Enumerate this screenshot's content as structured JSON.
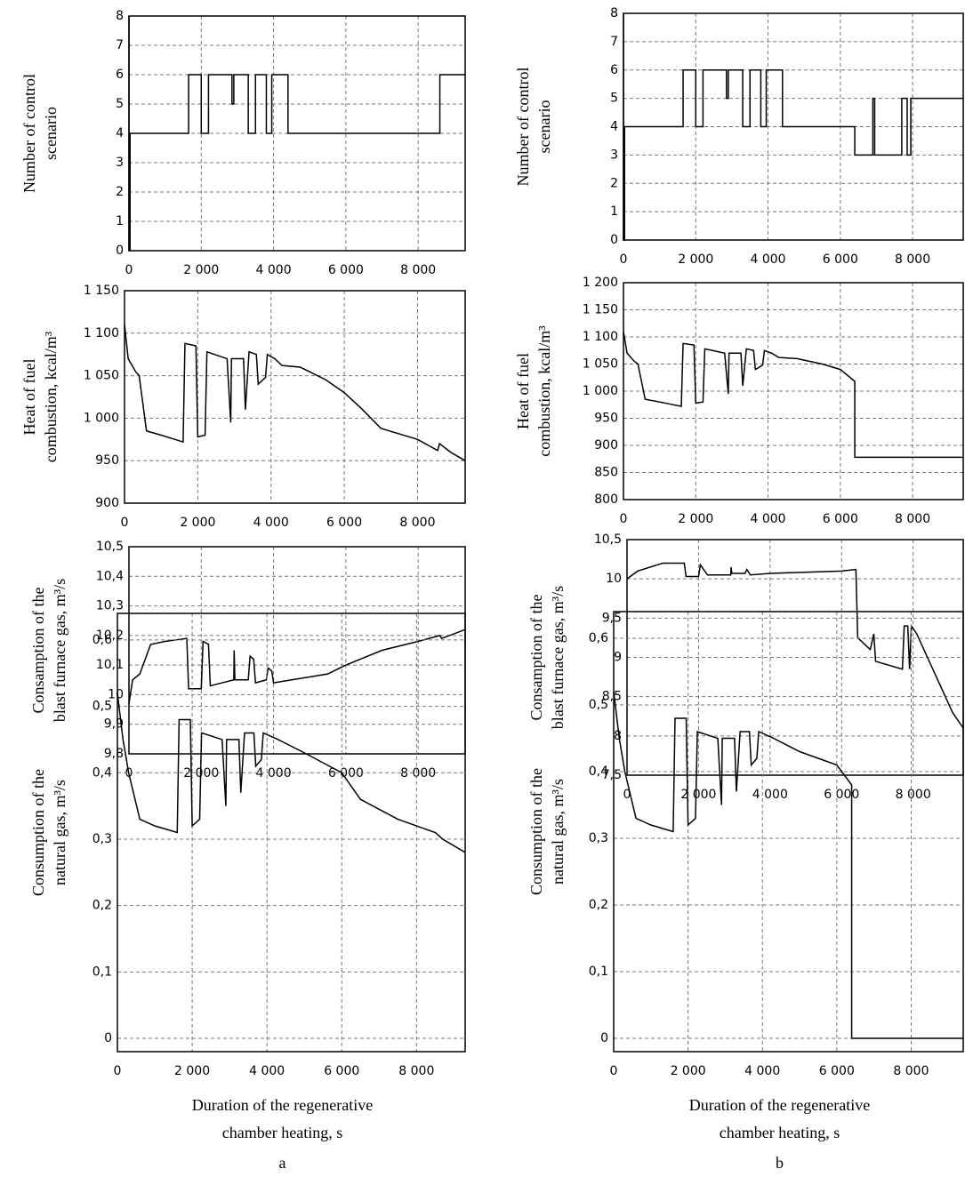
{
  "chart_data": [
    {
      "type": "line",
      "ylabel": [
        "Number of control",
        "scenario"
      ],
      "x": [
        0,
        0,
        30,
        30,
        1650,
        1650,
        2000,
        2000,
        2200,
        2200,
        2850,
        2850,
        2900,
        2900,
        3300,
        3300,
        3500,
        3500,
        3800,
        3800,
        3950,
        3950,
        4400,
        4400,
        8600,
        8600,
        9300
      ],
      "values": [
        8,
        0,
        0,
        4,
        4,
        6,
        6,
        4,
        4,
        6,
        6,
        5,
        5,
        6,
        6,
        4,
        4,
        6,
        6,
        4,
        4,
        6,
        6,
        4,
        4,
        6,
        6
      ],
      "xlim": [
        0,
        9300
      ],
      "ylim": [
        0,
        8
      ],
      "yticks": [
        0,
        1,
        2,
        3,
        4,
        5,
        6,
        7,
        8
      ],
      "xticks": [
        0,
        {
          "value": 2000,
          "label": "2 000"
        },
        {
          "value": 4000,
          "label": "4 000"
        },
        {
          "value": 6000,
          "label": "6 000"
        },
        {
          "value": 8000,
          "label": "8 000"
        }
      ],
      "grid": true,
      "color": "#000000"
    },
    {
      "type": "line",
      "ylabel": [
        "Heat of fuel",
        "combustion, kcal/m³"
      ],
      "x": [
        0,
        100,
        300,
        400,
        600,
        1000,
        1600,
        1650,
        1950,
        2000,
        2200,
        2250,
        2800,
        2900,
        2920,
        3250,
        3300,
        3400,
        3600,
        3650,
        3850,
        3900,
        4100,
        4300,
        4800,
        5500,
        6000,
        6500,
        7000,
        8000,
        8550,
        8600,
        8900,
        9300
      ],
      "values": [
        1110,
        1070,
        1055,
        1050,
        985,
        980,
        972,
        1088,
        1085,
        978,
        980,
        1078,
        1070,
        995,
        1070,
        1070,
        1010,
        1078,
        1075,
        1040,
        1048,
        1075,
        1070,
        1062,
        1060,
        1045,
        1030,
        1010,
        988,
        975,
        962,
        970,
        960,
        950
      ],
      "xlim": [
        0,
        9300
      ],
      "ylim": [
        900,
        1150
      ],
      "yticks": [
        900,
        950,
        {
          "value": 1000,
          "label": "1 000"
        },
        {
          "value": 1050,
          "label": "1 050"
        },
        {
          "value": 1100,
          "label": "1 100"
        },
        {
          "value": 1150,
          "label": "1 150"
        }
      ],
      "xticks": [
        0,
        {
          "value": 2000,
          "label": "2 000"
        },
        {
          "value": 4000,
          "label": "4 000"
        },
        {
          "value": 6000,
          "label": "6 000"
        },
        {
          "value": 8000,
          "label": "8 000"
        }
      ],
      "grid": true,
      "color": "#000000"
    },
    {
      "type": "line",
      "ylabel": [
        "Consamption of the",
        "blast furnace gas, m³/s"
      ],
      "x": [
        0,
        100,
        300,
        600,
        1000,
        1600,
        1650,
        2000,
        2050,
        2200,
        2250,
        2900,
        2910,
        2930,
        3300,
        3350,
        3450,
        3500,
        3800,
        3850,
        3950,
        4000,
        4500,
        5500,
        6000,
        7000,
        8000,
        8600,
        8650,
        9300
      ],
      "values": [
        9.97,
        10.05,
        10.07,
        10.17,
        10.18,
        10.19,
        10.02,
        10.02,
        10.18,
        10.17,
        10.03,
        10.05,
        10.15,
        10.05,
        10.05,
        10.13,
        10.12,
        10.04,
        10.05,
        10.09,
        10.08,
        10.04,
        10.05,
        10.07,
        10.1,
        10.15,
        10.18,
        10.2,
        10.19,
        10.22
      ],
      "xlim": [
        0,
        9300
      ],
      "ylim": [
        9.8,
        10.5
      ],
      "yticks": [
        {
          "value": 9.8,
          "label": "9,8"
        },
        {
          "value": 9.9,
          "label": "9,9"
        },
        10,
        {
          "value": 10.1,
          "label": "10,1"
        },
        {
          "value": 10.2,
          "label": "10,2"
        },
        {
          "value": 10.3,
          "label": "10,3"
        },
        {
          "value": 10.4,
          "label": "10,4"
        },
        {
          "value": 10.5,
          "label": "10,5"
        }
      ],
      "xticks": [
        0,
        {
          "value": 2000,
          "label": "2 000"
        },
        {
          "value": 4000,
          "label": "4 000"
        },
        {
          "value": 6000,
          "label": "6 000"
        },
        {
          "value": 8000,
          "label": "8 000"
        }
      ],
      "grid": true,
      "color": "#000000"
    },
    {
      "type": "line",
      "ylabel": [
        "Consumption of the",
        "natural gas, m³/s"
      ],
      "x": [
        0,
        150,
        300,
        600,
        1000,
        1600,
        1650,
        1950,
        2000,
        2200,
        2250,
        2800,
        2900,
        2920,
        3250,
        3300,
        3400,
        3650,
        3700,
        3850,
        3900,
        4300,
        5000,
        6000,
        6500,
        7500,
        8500,
        8700,
        9300
      ],
      "values": [
        0.52,
        0.45,
        0.4,
        0.33,
        0.32,
        0.31,
        0.48,
        0.48,
        0.32,
        0.33,
        0.46,
        0.45,
        0.35,
        0.45,
        0.45,
        0.37,
        0.46,
        0.46,
        0.41,
        0.42,
        0.46,
        0.45,
        0.43,
        0.4,
        0.36,
        0.33,
        0.31,
        0.3,
        0.28
      ],
      "xlim": [
        0,
        9300
      ],
      "ylim": [
        -0.02,
        0.64
      ],
      "yticks": [
        0,
        {
          "value": 0.1,
          "label": "0,1"
        },
        {
          "value": 0.2,
          "label": "0,2"
        },
        {
          "value": 0.3,
          "label": "0,3"
        },
        {
          "value": 0.4,
          "label": "0,4"
        },
        {
          "value": 0.5,
          "label": "0,5"
        },
        {
          "value": 0.6,
          "label": "0,6"
        }
      ],
      "xticks": [
        0,
        {
          "value": 2000,
          "label": "2 000"
        },
        {
          "value": 4000,
          "label": "4 000"
        },
        {
          "value": 6000,
          "label": "6 000"
        },
        {
          "value": 8000,
          "label": "8 000"
        }
      ],
      "grid": true,
      "color": "#000000",
      "xlabel": [
        "Duration of the regenerative",
        "chamber heating, s"
      ],
      "caption": "a"
    },
    {
      "type": "line",
      "ylabel": [
        "Number of control",
        "scenario"
      ],
      "x": [
        0,
        0,
        30,
        30,
        1650,
        1650,
        2000,
        2000,
        2200,
        2200,
        2850,
        2850,
        2900,
        2900,
        3300,
        3300,
        3500,
        3500,
        3800,
        3800,
        3950,
        3950,
        4400,
        4400,
        6400,
        6400,
        6900,
        6900,
        6950,
        6950,
        7700,
        7700,
        7850,
        7850,
        7950,
        7950,
        9400
      ],
      "values": [
        8,
        0,
        0,
        4,
        4,
        6,
        6,
        4,
        4,
        6,
        6,
        5,
        5,
        6,
        6,
        4,
        4,
        6,
        6,
        4,
        4,
        6,
        6,
        4,
        4,
        3,
        3,
        5,
        5,
        3,
        3,
        5,
        5,
        3,
        3,
        5,
        5
      ],
      "xlim": [
        0,
        9400
      ],
      "ylim": [
        0,
        8
      ],
      "yticks": [
        0,
        1,
        2,
        3,
        4,
        5,
        6,
        7,
        8
      ],
      "xticks": [
        0,
        {
          "value": 2000,
          "label": "2 000"
        },
        {
          "value": 4000,
          "label": "4 000"
        },
        {
          "value": 6000,
          "label": "6 000"
        },
        {
          "value": 8000,
          "label": "8 000"
        }
      ],
      "grid": true,
      "color": "#000000"
    },
    {
      "type": "line",
      "ylabel": [
        "Heat of fuel",
        "combustion, kcal/m³"
      ],
      "x": [
        0,
        100,
        300,
        400,
        600,
        1000,
        1600,
        1650,
        1950,
        2000,
        2200,
        2250,
        2800,
        2900,
        2920,
        3250,
        3300,
        3400,
        3600,
        3650,
        3850,
        3900,
        4100,
        4300,
        4800,
        5500,
        6000,
        6400,
        6400,
        9400
      ],
      "values": [
        1110,
        1070,
        1055,
        1050,
        985,
        980,
        972,
        1088,
        1085,
        978,
        980,
        1078,
        1070,
        995,
        1070,
        1070,
        1010,
        1078,
        1075,
        1040,
        1048,
        1075,
        1070,
        1062,
        1060,
        1050,
        1040,
        1018,
        878,
        878
      ],
      "xlim": [
        0,
        9400
      ],
      "ylim": [
        800,
        1200
      ],
      "yticks": [
        800,
        850,
        900,
        950,
        {
          "value": 1000,
          "label": "1 000"
        },
        {
          "value": 1050,
          "label": "1 050"
        },
        {
          "value": 1100,
          "label": "1 100"
        },
        {
          "value": 1150,
          "label": "1 150"
        },
        {
          "value": 1200,
          "label": "1 200"
        }
      ],
      "xticks": [
        0,
        {
          "value": 2000,
          "label": "2 000"
        },
        {
          "value": 4000,
          "label": "4 000"
        },
        {
          "value": 6000,
          "label": "6 000"
        },
        {
          "value": 8000,
          "label": "8 000"
        }
      ],
      "grid": true,
      "color": "#000000"
    },
    {
      "type": "line",
      "ylabel": [
        "Consamption of the",
        "blast furnace gas, m³/s"
      ],
      "x": [
        0,
        300,
        1000,
        1600,
        1650,
        2000,
        2050,
        2250,
        2900,
        2910,
        2930,
        3300,
        3350,
        3450,
        4000,
        6000,
        6400,
        6450,
        6800,
        6900,
        6950,
        7700,
        7750,
        7850,
        7900,
        7950,
        8100,
        8600,
        9100,
        9400
      ],
      "values": [
        10.0,
        10.1,
        10.2,
        10.2,
        10.03,
        10.03,
        10.18,
        10.05,
        10.05,
        10.15,
        10.07,
        10.07,
        10.12,
        10.05,
        10.07,
        10.1,
        10.12,
        9.25,
        9.1,
        9.3,
        8.95,
        8.85,
        9.4,
        9.4,
        8.85,
        9.4,
        9.3,
        8.8,
        8.3,
        8.1
      ],
      "xlim": [
        0,
        9400
      ],
      "ylim": [
        7.5,
        10.5
      ],
      "yticks": [
        {
          "value": 7.5,
          "label": "7,5"
        },
        8,
        {
          "value": 8.5,
          "label": "8,5"
        },
        9,
        {
          "value": 9.5,
          "label": "9,5"
        },
        10,
        {
          "value": 10.5,
          "label": "10,5"
        }
      ],
      "xticks": [
        0,
        {
          "value": 2000,
          "label": "2 000"
        },
        {
          "value": 4000,
          "label": "4 000"
        },
        {
          "value": 6000,
          "label": "6 000"
        },
        {
          "value": 8000,
          "label": "8 000"
        }
      ],
      "grid": true,
      "color": "#000000"
    },
    {
      "type": "line",
      "ylabel": [
        "Consumption of the",
        "natural gas, m³/s"
      ],
      "x": [
        0,
        150,
        300,
        600,
        1000,
        1600,
        1650,
        1950,
        2000,
        2200,
        2250,
        2800,
        2900,
        2920,
        3250,
        3300,
        3400,
        3650,
        3700,
        3850,
        3900,
        4300,
        5000,
        6000,
        6400,
        6400,
        9400
      ],
      "values": [
        0.52,
        0.45,
        0.4,
        0.33,
        0.32,
        0.31,
        0.48,
        0.48,
        0.32,
        0.33,
        0.46,
        0.45,
        0.35,
        0.45,
        0.45,
        0.37,
        0.46,
        0.46,
        0.41,
        0.42,
        0.46,
        0.45,
        0.43,
        0.41,
        0.38,
        0,
        0
      ],
      "xlim": [
        0,
        9400
      ],
      "ylim": [
        -0.02,
        0.64
      ],
      "yticks": [
        0,
        {
          "value": 0.1,
          "label": "0,1"
        },
        {
          "value": 0.2,
          "label": "0,2"
        },
        {
          "value": 0.3,
          "label": "0,3"
        },
        {
          "value": 0.4,
          "label": "0,4"
        },
        {
          "value": 0.5,
          "label": "0,5"
        },
        {
          "value": 0.6,
          "label": "0,6"
        }
      ],
      "xticks": [
        0,
        {
          "value": 2000,
          "label": "2 000"
        },
        {
          "value": 4000,
          "label": "4 000"
        },
        {
          "value": 6000,
          "label": "6 000"
        },
        {
          "value": 8000,
          "label": "8 000"
        }
      ],
      "grid": true,
      "color": "#000000",
      "xlabel": [
        "Duration of the regenerative",
        "chamber heating, s"
      ],
      "caption": "b"
    }
  ]
}
